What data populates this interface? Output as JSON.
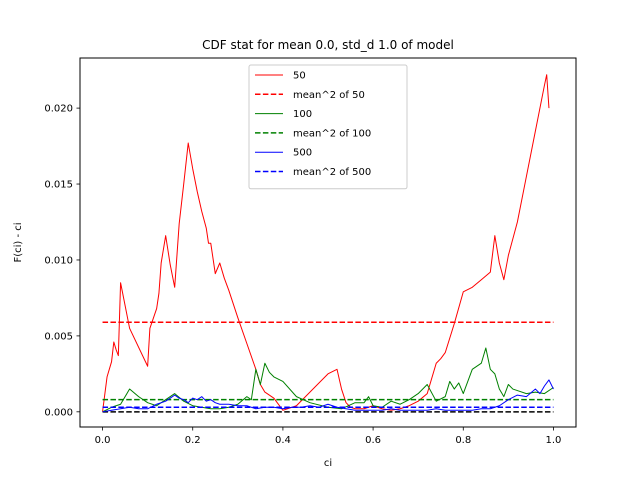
{
  "chart_data": {
    "type": "line",
    "title": "CDF stat for mean 0.0, std_d 1.0 of model",
    "xlabel": "ci",
    "ylabel": "F(ci) - ci",
    "xlim": [
      -0.05,
      1.05
    ],
    "ylim": [
      -0.001,
      0.0233
    ],
    "xticks": [
      0.0,
      0.2,
      0.4,
      0.6,
      0.8,
      1.0
    ],
    "xtick_labels": [
      "0.0",
      "0.2",
      "0.4",
      "0.6",
      "0.8",
      "1.0"
    ],
    "yticks": [
      0.0,
      0.005,
      0.01,
      0.015,
      0.02
    ],
    "ytick_labels": [
      "0.000",
      "0.005",
      "0.010",
      "0.015",
      "0.020"
    ],
    "grid": false,
    "legend_position": "top-center",
    "series": [
      {
        "name": "50",
        "style": "solid",
        "color": "#ff0000",
        "x": [
          0.0,
          0.01,
          0.02,
          0.025,
          0.03,
          0.035,
          0.04,
          0.06,
          0.1,
          0.105,
          0.12,
          0.125,
          0.13,
          0.14,
          0.15,
          0.16,
          0.17,
          0.18,
          0.19,
          0.2,
          0.21,
          0.22,
          0.23,
          0.235,
          0.24,
          0.25,
          0.26,
          0.27,
          0.28,
          0.3,
          0.32,
          0.34,
          0.35,
          0.36,
          0.38,
          0.4,
          0.43,
          0.5,
          0.52,
          0.53,
          0.54,
          0.55,
          0.56,
          0.58,
          0.6,
          0.62,
          0.64,
          0.66,
          0.68,
          0.7,
          0.72,
          0.74,
          0.75,
          0.76,
          0.78,
          0.8,
          0.82,
          0.84,
          0.86,
          0.87,
          0.88,
          0.89,
          0.9,
          0.92,
          0.94,
          0.96,
          0.98,
          0.985,
          0.99
        ],
        "y": [
          0.0,
          0.0023,
          0.0033,
          0.0046,
          0.0041,
          0.0037,
          0.0085,
          0.0055,
          0.003,
          0.0055,
          0.0068,
          0.0078,
          0.0098,
          0.0116,
          0.0097,
          0.0082,
          0.0124,
          0.015,
          0.0177,
          0.016,
          0.0145,
          0.0132,
          0.0121,
          0.0111,
          0.0111,
          0.0091,
          0.0098,
          0.0088,
          0.008,
          0.0062,
          0.0045,
          0.0028,
          0.0018,
          0.0013,
          0.0009,
          0.0001,
          0.0004,
          0.0025,
          0.0028,
          0.0015,
          0.0006,
          0.0003,
          0.0002,
          0.0002,
          0.0004,
          0.0002,
          0.0001,
          0.0002,
          0.0004,
          0.0007,
          0.0012,
          0.0032,
          0.0035,
          0.0039,
          0.0058,
          0.0079,
          0.0082,
          0.0087,
          0.0092,
          0.0116,
          0.0098,
          0.0087,
          0.0103,
          0.0125,
          0.0155,
          0.0185,
          0.0215,
          0.0222,
          0.02
        ]
      },
      {
        "name": "mean^2 of 50",
        "style": "dashed",
        "color": "#ff0000",
        "x": [
          0.0,
          1.0
        ],
        "y": [
          0.0059,
          0.0059
        ]
      },
      {
        "name": "100",
        "style": "solid",
        "color": "#008000",
        "x": [
          0.0,
          0.02,
          0.04,
          0.06,
          0.08,
          0.1,
          0.12,
          0.14,
          0.16,
          0.18,
          0.2,
          0.22,
          0.24,
          0.26,
          0.28,
          0.3,
          0.32,
          0.33,
          0.34,
          0.35,
          0.36,
          0.37,
          0.38,
          0.4,
          0.43,
          0.46,
          0.5,
          0.53,
          0.56,
          0.58,
          0.59,
          0.6,
          0.62,
          0.64,
          0.66,
          0.68,
          0.7,
          0.72,
          0.74,
          0.76,
          0.77,
          0.78,
          0.79,
          0.8,
          0.82,
          0.84,
          0.85,
          0.86,
          0.87,
          0.88,
          0.89,
          0.9,
          0.91,
          0.92,
          0.94,
          0.96,
          0.98,
          1.0
        ],
        "y": [
          0.0,
          0.0003,
          0.0005,
          0.0015,
          0.001,
          0.0006,
          0.0004,
          0.0008,
          0.0012,
          0.0007,
          0.0004,
          0.0003,
          0.0002,
          0.0002,
          0.0003,
          0.0005,
          0.001,
          0.0008,
          0.0028,
          0.0018,
          0.0032,
          0.0026,
          0.0023,
          0.002,
          0.001,
          0.0006,
          0.0003,
          0.0002,
          0.0006,
          0.0006,
          0.001,
          0.0004,
          0.0003,
          0.0007,
          0.0005,
          0.0008,
          0.0012,
          0.0018,
          0.0007,
          0.001,
          0.002,
          0.0015,
          0.0019,
          0.0012,
          0.0028,
          0.0032,
          0.0042,
          0.0028,
          0.0025,
          0.0015,
          0.001,
          0.0018,
          0.0015,
          0.0014,
          0.0012,
          0.0013,
          0.0012,
          0.0016
        ]
      },
      {
        "name": "mean^2 of 100",
        "style": "dashed",
        "color": "#008000",
        "x": [
          0.0,
          1.0
        ],
        "y": [
          0.0008,
          0.0008
        ]
      },
      {
        "name": "500",
        "style": "solid",
        "color": "#0000ff",
        "x": [
          0.0,
          0.02,
          0.04,
          0.06,
          0.08,
          0.1,
          0.12,
          0.14,
          0.15,
          0.16,
          0.17,
          0.18,
          0.19,
          0.2,
          0.21,
          0.22,
          0.23,
          0.24,
          0.25,
          0.26,
          0.28,
          0.3,
          0.32,
          0.34,
          0.36,
          0.38,
          0.4,
          0.42,
          0.44,
          0.46,
          0.48,
          0.5,
          0.52,
          0.54,
          0.56,
          0.58,
          0.6,
          0.62,
          0.64,
          0.66,
          0.68,
          0.7,
          0.72,
          0.74,
          0.76,
          0.78,
          0.8,
          0.82,
          0.84,
          0.86,
          0.88,
          0.9,
          0.92,
          0.94,
          0.96,
          0.97,
          0.98,
          0.99,
          1.0
        ],
        "y": [
          0.0,
          0.0001,
          0.0002,
          0.0003,
          0.0002,
          0.0002,
          0.0005,
          0.0007,
          0.0009,
          0.0011,
          0.0009,
          0.0008,
          0.0006,
          0.0009,
          0.0008,
          0.001,
          0.0007,
          0.0008,
          0.0006,
          0.0005,
          0.0005,
          0.0004,
          0.0004,
          0.0002,
          0.0003,
          0.0003,
          0.0002,
          0.0003,
          0.0003,
          0.0004,
          0.0003,
          0.0005,
          0.0003,
          0.0002,
          0.0001,
          0.0001,
          0.0001,
          0.0001,
          0.0002,
          0.0001,
          0.0001,
          0.0001,
          0.0001,
          0.0002,
          0.0001,
          0.0001,
          0.0001,
          0.0001,
          0.0002,
          0.0002,
          0.0004,
          0.0008,
          0.0011,
          0.001,
          0.0015,
          0.0012,
          0.0017,
          0.0021,
          0.0015
        ]
      },
      {
        "name": "mean^2 of 500",
        "style": "dashed",
        "color": "#0000ff",
        "x": [
          0.0,
          1.0
        ],
        "y": [
          0.0003,
          0.0003
        ]
      }
    ],
    "baseline": {
      "style": "dashed",
      "color": "#000000",
      "y": 0.0
    }
  }
}
